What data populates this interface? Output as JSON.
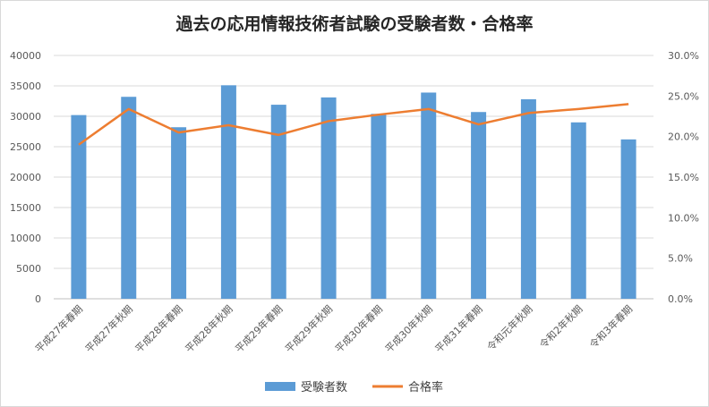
{
  "chart_data": {
    "type": "bar",
    "title": "過去の応用情報技術者試験の受験者数・合格率",
    "categories": [
      "平成27年春期",
      "平成27年秋期",
      "平成28年春期",
      "平成28年秋期",
      "平成29年春期",
      "平成29年秋期",
      "平成30年春期",
      "平成30年秋期",
      "平成31年春期",
      "令和元年秋期",
      "令和2年秋期",
      "令和3年春期"
    ],
    "series": [
      {
        "name": "受験者数",
        "type": "bar",
        "axis": "left",
        "color": "#5b9bd5",
        "values": [
          30200,
          33200,
          28200,
          35100,
          31900,
          33100,
          30400,
          33900,
          30700,
          32800,
          29000,
          26200
        ]
      },
      {
        "name": "合格率",
        "type": "line",
        "axis": "right",
        "color": "#ed7d31",
        "values": [
          19.0,
          23.4,
          20.5,
          21.4,
          20.2,
          21.9,
          22.7,
          23.4,
          21.5,
          22.9,
          23.4,
          24.0
        ]
      }
    ],
    "y_left": {
      "min": 0,
      "max": 40000,
      "step": 5000,
      "ticks": [
        "0",
        "5000",
        "10000",
        "15000",
        "20000",
        "25000",
        "30000",
        "35000",
        "40000"
      ]
    },
    "y_right": {
      "min": 0,
      "max": 30,
      "step": 5,
      "ticks": [
        "0.0%",
        "5.0%",
        "10.0%",
        "15.0%",
        "20.0%",
        "25.0%",
        "30.0%"
      ]
    },
    "grid": true,
    "legend": "bottom"
  }
}
